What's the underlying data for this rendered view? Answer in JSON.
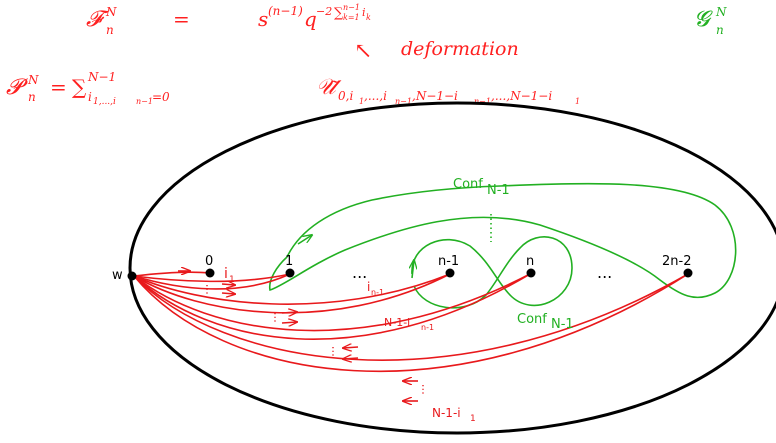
{
  "colors": {
    "red": "#e8191c",
    "green": "#22b022",
    "black": "#000000"
  },
  "header": {
    "F": "𝓕",
    "F_sup": "N",
    "F_sub": "n",
    "equals": "=",
    "s": "s",
    "s_sup": "(n−1)",
    "q": "q",
    "q_sup": "−2",
    "sum": "∑",
    "sum_sup": "n−1",
    "sum_sub": "k=1",
    "sum_term": "i",
    "sum_term_sub": "k",
    "G": "𝓖",
    "G_sup": "N",
    "G_sub": "n",
    "arrow": "↖",
    "deformation": "deformation",
    "P": "𝓟",
    "P_sup": "N",
    "P_sub": "n",
    "P_eq": "=",
    "P_sum": "∑",
    "P_sum_sup": "N−1",
    "P_sum_sub": "i",
    "P_sum_sub2": "1,...,i",
    "P_sum_sub3": "n−1",
    "P_sum_sub4": "=0",
    "U": "𝒰̃",
    "U_sub": "0,i",
    "U_sub2": "1",
    "U_sub3": ",...,i",
    "U_sub4": "n−1",
    "U_sub5": ",N−1−i",
    "U_sub6": "n−1",
    "U_sub7": ",...,N−1−i",
    "U_sub8": "1"
  },
  "diagram": {
    "points": {
      "w": "w",
      "p0": "0",
      "p1": "1",
      "pn1": "n-1",
      "pn": "n",
      "p2n2": "2n-2"
    },
    "dots_mid": "...",
    "dots_right": "...",
    "labels": {
      "i1": "i",
      "i1_sub": "1",
      "in1": "i",
      "in1_sub": "n-1",
      "N1in1": "N-1-i",
      "N1in1_sub": "n-1",
      "N1i1": "N-1-i",
      "N1i1_sub": "1",
      "conf_top": "Conf",
      "conf_top_sub": "N-1",
      "conf_mid": "Conf",
      "conf_mid_sub": "N-1"
    }
  }
}
